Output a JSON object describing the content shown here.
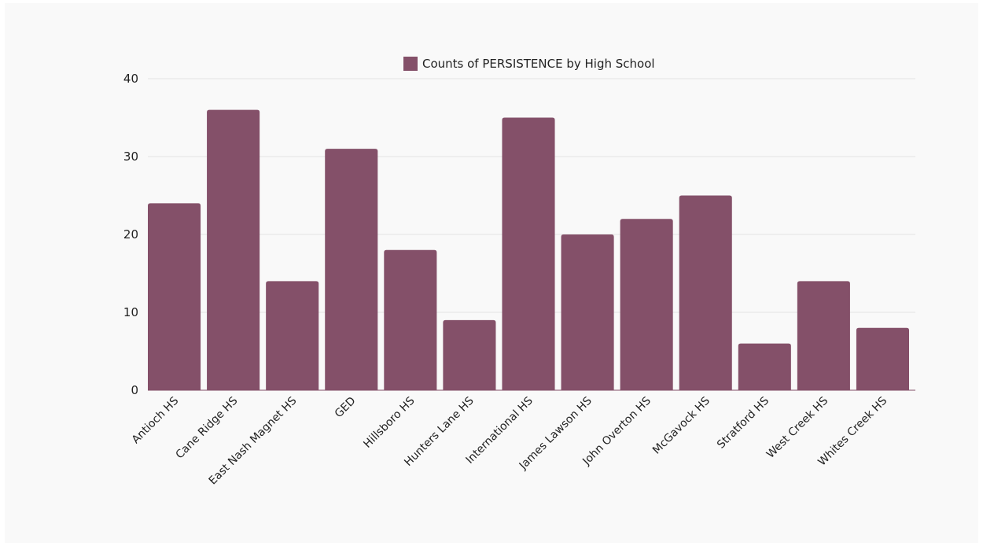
{
  "chart_data": {
    "type": "bar",
    "categories": [
      "Antioch HS",
      "Cane Ridge HS",
      "East Nash Magnet HS",
      "GED",
      "Hillsboro HS",
      "Hunters Lane HS",
      "International HS",
      "James Lawson HS",
      "John Overton HS",
      "McGavock HS",
      "Stratford HS",
      "West Creek HS",
      "Whites Creek HS"
    ],
    "series": [
      {
        "name": "Counts of PERSISTENCE by High School",
        "values": [
          24,
          36,
          14,
          31,
          18,
          9,
          35,
          20,
          22,
          25,
          6,
          14,
          8
        ],
        "color": "#845069"
      }
    ],
    "ylim": [
      0,
      40
    ],
    "yticks": [
      0,
      10,
      20,
      30,
      40
    ],
    "grid": true,
    "legend": "top-center"
  }
}
